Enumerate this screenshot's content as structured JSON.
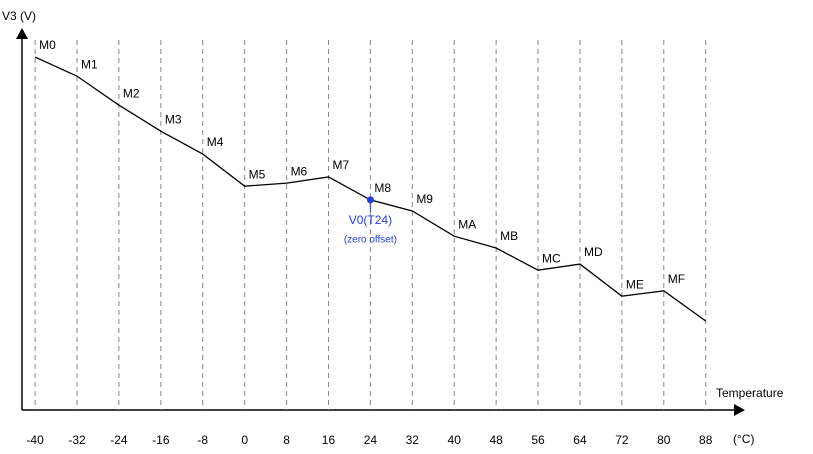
{
  "chart_data": {
    "type": "line",
    "ylabel": "V3 (V)",
    "xlabel": "Temperature",
    "x_unit": "(°C)",
    "x": [
      -40,
      -32,
      -24,
      -16,
      -8,
      0,
      8,
      16,
      24,
      32,
      40,
      48,
      56,
      64,
      72,
      80,
      88
    ],
    "series": [
      {
        "color": "#000000",
        "values": [
          92.4,
          87.4,
          79.8,
          73.0,
          67.0,
          58.6,
          59.4,
          61.0,
          55.0,
          52.1,
          45.5,
          42.4,
          36.6,
          38.2,
          29.8,
          31.2,
          23.3
        ],
        "labels": [
          "M0",
          "M1",
          "M2",
          "M3",
          "M4",
          "M5",
          "M6",
          "M7",
          "M8",
          "M9",
          "MA",
          "MB",
          "MC",
          "MD",
          "ME",
          "MF",
          null
        ]
      }
    ],
    "xlim": [
      -42.5,
      95.5
    ],
    "ylim": [
      0,
      100
    ],
    "xticks": [
      -40,
      -32,
      -24,
      -16,
      -8,
      0,
      8,
      16,
      24,
      32,
      40,
      48,
      56,
      64,
      72,
      80,
      88
    ],
    "grid": true,
    "annotations": [
      {
        "x": 24,
        "text": "V0(T24)",
        "subtext": "(zero offset)",
        "color": "#1f3fdc"
      }
    ]
  }
}
